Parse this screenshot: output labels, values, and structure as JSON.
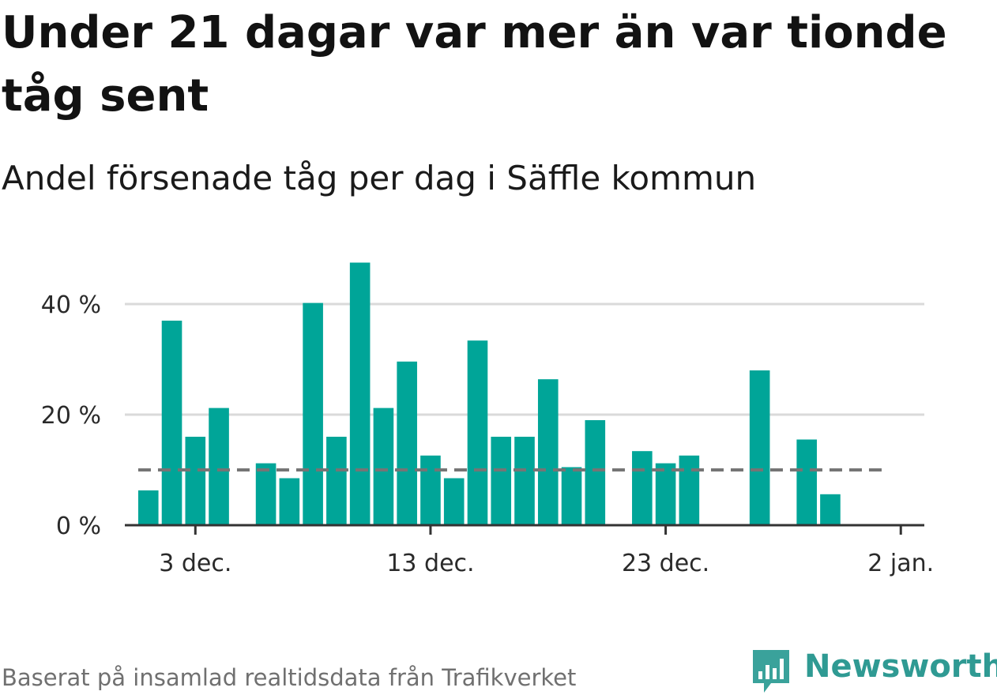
{
  "header": {
    "title": "Under 21 dagar var mer än var tionde tåg sent",
    "subtitle": "Andel försenade tåg per dag i Säffle kommun"
  },
  "footer": {
    "source": "Baserat på insamlad realtidsdata från Trafikverket"
  },
  "brand": {
    "name": "Newsworthy",
    "logo_icon": "bar-chart-speech-bubble-icon",
    "color": "#2f9a93"
  },
  "chart_data": {
    "type": "bar",
    "title": "Andel försenade tåg per dag i Säffle kommun",
    "xlabel": "",
    "ylabel": "",
    "x_axis": {
      "type": "date",
      "range": [
        "2019-11-30",
        "2020-01-03"
      ],
      "tick_dates": [
        "2019-12-03",
        "2019-12-13",
        "2019-12-23",
        "2020-01-02"
      ],
      "tick_labels": [
        "3 dec.",
        "13 dec.",
        "23 dec.",
        "2 jan."
      ]
    },
    "y_axis": {
      "range": [
        0,
        50
      ],
      "ticks": [
        0,
        20,
        40
      ],
      "tick_labels": [
        "0 %",
        "20 %",
        "40 %"
      ],
      "gridlines": true
    },
    "reference_line": {
      "value": 10,
      "style": "dashed",
      "color": "#757575"
    },
    "bar_color": "#00a598",
    "dates": [
      "2019-12-01",
      "2019-12-02",
      "2019-12-03",
      "2019-12-04",
      "2019-12-05",
      "2019-12-06",
      "2019-12-07",
      "2019-12-08",
      "2019-12-09",
      "2019-12-10",
      "2019-12-11",
      "2019-12-12",
      "2019-12-13",
      "2019-12-14",
      "2019-12-15",
      "2019-12-16",
      "2019-12-17",
      "2019-12-18",
      "2019-12-19",
      "2019-12-20",
      "2019-12-21",
      "2019-12-22",
      "2019-12-23",
      "2019-12-24",
      "2019-12-25",
      "2019-12-26",
      "2019-12-27",
      "2019-12-28",
      "2019-12-29",
      "2019-12-30",
      "2019-12-31",
      "2020-01-01"
    ],
    "values": [
      6.3,
      37,
      16,
      21.2,
      0,
      11.2,
      8.5,
      40.2,
      16,
      47.5,
      21.2,
      29.6,
      12.6,
      8.5,
      33.4,
      16,
      16,
      26.4,
      10.5,
      19,
      0,
      13.4,
      11.2,
      12.6,
      0,
      0,
      28,
      0,
      15.5,
      5.6,
      0,
      0
    ]
  }
}
